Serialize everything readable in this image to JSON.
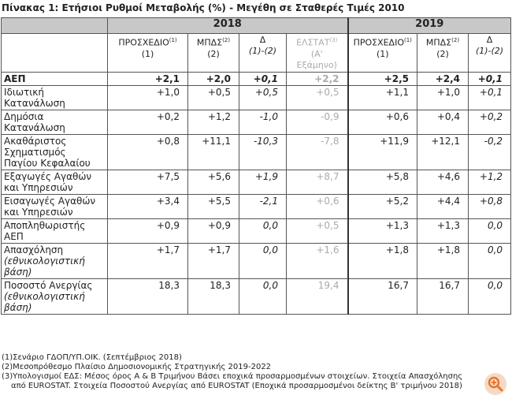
{
  "title": "Πίνακας 1: Ετήσιοι Ρυθμοί Μεταβολής (%) - Μεγέθη σε Σταθερές Τιμές 2010",
  "table": {
    "years": [
      "2018",
      "2019"
    ],
    "columns": [
      {
        "label": "ΠΡΟΣΧΕΔΙΟ",
        "sup": "(1)",
        "sub": "(1)"
      },
      {
        "label": "ΜΠΔΣ",
        "sup": "(2)",
        "sub": "(2)"
      },
      {
        "label": "Δ",
        "sub": "(1)-(2)"
      },
      {
        "label": "ΕΛΣΤΑΤ",
        "sup": "(3)",
        "sub": "(Α'\nΕξάμηνο)"
      },
      {
        "label": "ΠΡΟΣΧΕΔΙΟ",
        "sup": "(1)",
        "sub": "(1)"
      },
      {
        "label": "ΜΠΔΣ",
        "sup": "(2)",
        "sub": "(2)"
      },
      {
        "label": "Δ",
        "sub": "(1)-(2)"
      }
    ],
    "rows": [
      {
        "name": "ΑΕΠ",
        "values": [
          "+2,1",
          "+2,0",
          "+0,1",
          "+2,2",
          "+2,5",
          "+2,4",
          "+0,1"
        ]
      },
      {
        "name": "Ιδιωτική\nΚατανάλωση",
        "values": [
          "+1,0",
          "+0,5",
          "+0,5",
          "+0,5",
          "+1,1",
          "+1,0",
          "+0,1"
        ]
      },
      {
        "name": "Δημόσια\nΚατανάλωση",
        "values": [
          "+0,2",
          "+1,2",
          "-1,0",
          "-0,9",
          "+0,6",
          "+0,4",
          "+0,2"
        ]
      },
      {
        "name": "Ακαθάριστος\nΣχηματισμός\nΠαγίου Κεφαλαίου",
        "values": [
          "+0,8",
          "+11,1",
          "-10,3",
          "-7,8",
          "+11,9",
          "+12,1",
          "-0,2"
        ]
      },
      {
        "name": "Εξαγωγές Αγαθών\nκαι Υπηρεσιών",
        "values": [
          "+7,5",
          "+5,6",
          "+1,9",
          "+8,7",
          "+5,8",
          "+4,6",
          "+1,2"
        ]
      },
      {
        "name": "Εισαγωγές Αγαθών\nκαι Υπηρεσιών",
        "values": [
          "+3,4",
          "+5,5",
          "-2,1",
          "+0,6",
          "+5,2",
          "+4,4",
          "+0,8"
        ]
      },
      {
        "name": "Αποπληθωριστής\nΑΕΠ",
        "values": [
          "+0,9",
          "+0,9",
          "0,0",
          "+0,5",
          "+1,3",
          "+1,3",
          "0,0"
        ]
      },
      {
        "name": "Απασχόληση",
        "note": "(εθνικολογιστική\nβάση)",
        "values": [
          "+1,7",
          "+1,7",
          "0,0",
          "+1,6",
          "+1,8",
          "+1,8",
          "0,0"
        ]
      },
      {
        "name": "Ποσοστό Ανεργίας",
        "note": "(εθνικολογιστική\nβάση)",
        "values": [
          "18,3",
          "18,3",
          "0,0",
          "19,4",
          "16,7",
          "16,7",
          "0,0"
        ]
      }
    ]
  },
  "footnotes": [
    "(1)Σενάριο ΓΔΟΠ/ΥΠ.ΟΙΚ. (Σεπτέμβριος 2018)",
    "(2)Μεσοπρόθεσμο Πλαίσιο Δημοσιονομικής Στρατηγικής 2019-2022",
    "(3)Υπολογισμοί ΕΔΣ: Μέσος όρος Α & Β Τριμήνου Βάσει εποχικά προσαρμοσμένων στοιχείων. Στοιχεία Απασχόλησης από EUROSTAT. Στοιχεία Ποσοστού Ανεργίας από EUROSTAT (Εποχικά προσαρμοσμένοι δείκτης Β' τριμήνου 2018)"
  ]
}
